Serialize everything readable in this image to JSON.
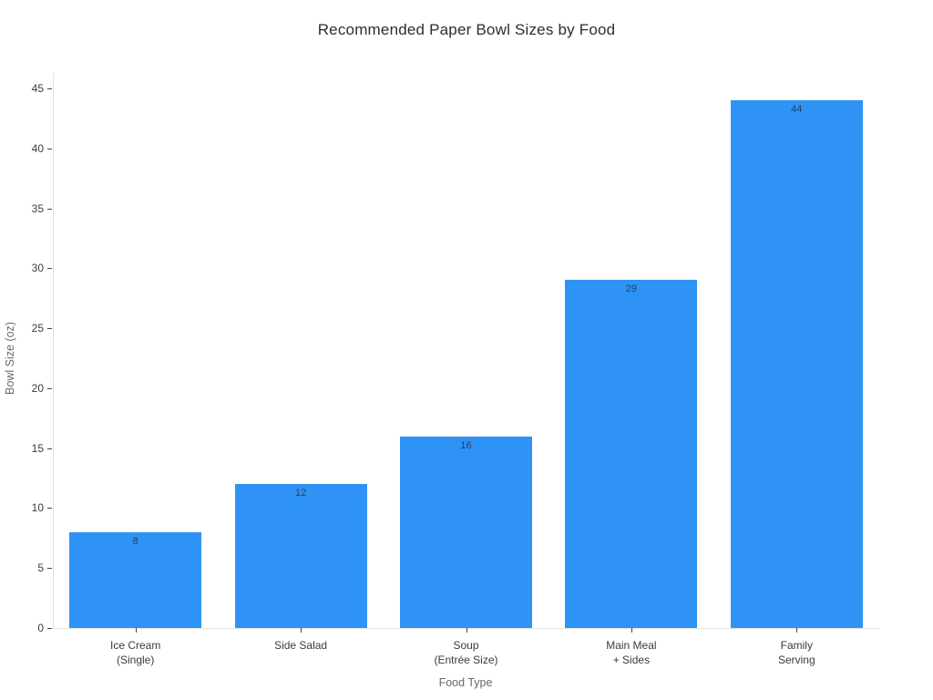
{
  "chart_data": {
    "type": "bar",
    "title": "Recommended Paper Bowl Sizes by Food",
    "xlabel": "Food Type",
    "ylabel": "Bowl Size (oz)",
    "categories": [
      "Ice Cream\n(Single)",
      "Side Salad",
      "Soup\n(Entrée Size)",
      "Main Meal\n+ Sides",
      "Family\nServing"
    ],
    "values": [
      8,
      12,
      16,
      29,
      44
    ],
    "value_labels": [
      "8",
      "12",
      "16",
      "29",
      "44"
    ],
    "value_labels_position": "inside-top",
    "ylim": [
      0,
      45
    ],
    "yticks": [
      0,
      5,
      10,
      15,
      20,
      25,
      30,
      35,
      40,
      45
    ],
    "grid": false,
    "legend": "none",
    "bar_color": "#2E93F5",
    "value_label_color": "#2a3f5f",
    "axis_line_color": "#e2e2e2",
    "tick_label_color": "#3b3b3b",
    "axis_title_color": "#666a6e",
    "background_color": "#ffffff"
  }
}
